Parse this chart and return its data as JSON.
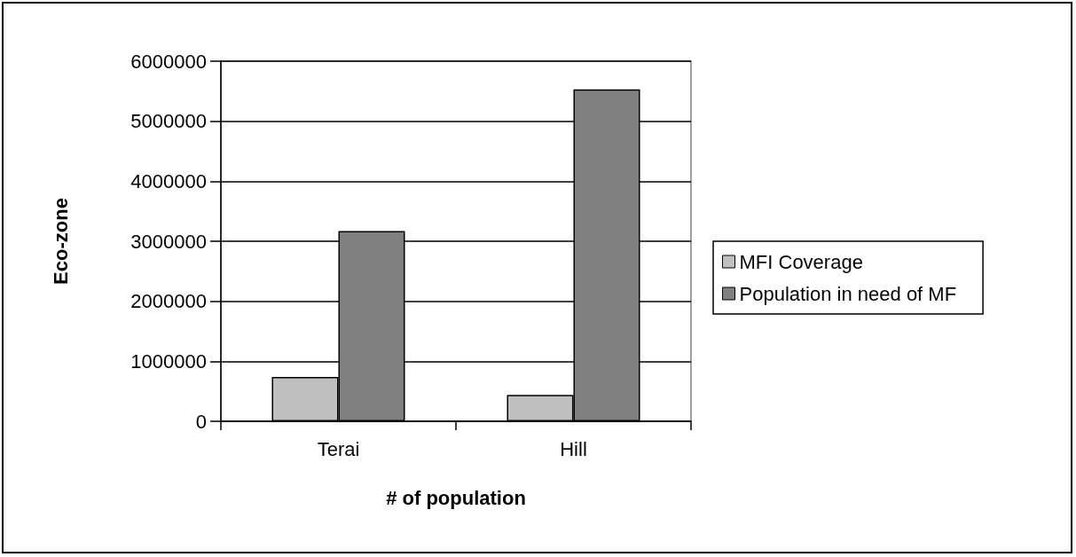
{
  "chart_data": {
    "type": "bar",
    "xlabel": "# of population",
    "ylabel": "Eco-zone",
    "categories": [
      "Terai",
      "Hill"
    ],
    "series": [
      {
        "name": "MFI Coverage",
        "color": "#c0c0c0",
        "values": [
          740000,
          440000
        ]
      },
      {
        "name": "Population in need of MF",
        "color": "#808080",
        "values": [
          3170000,
          5530000
        ]
      }
    ],
    "ylim": [
      0,
      6000000
    ],
    "yticks": [
      0,
      1000000,
      2000000,
      3000000,
      4000000,
      5000000,
      6000000
    ],
    "grid": "y",
    "legend": "right"
  }
}
